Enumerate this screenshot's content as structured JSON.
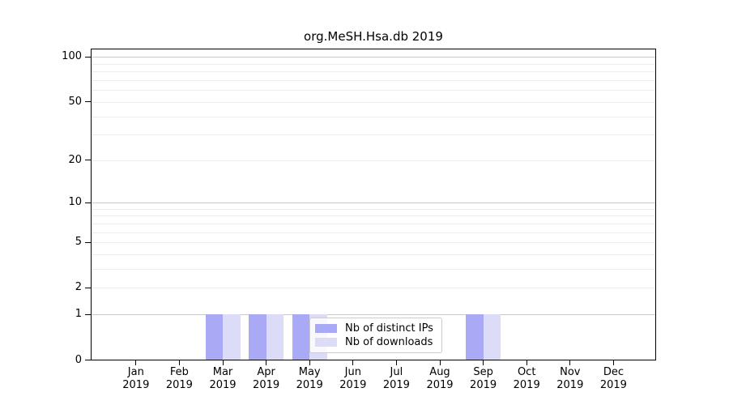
{
  "figure": {
    "background_color": "#ffffff",
    "axis_color": "#000000",
    "text_color": "#000000"
  },
  "chart_data": {
    "type": "bar",
    "title": "org.MeSH.Hsa.db 2019",
    "xlabel": "",
    "ylabel": "",
    "year": "2019",
    "categories": [
      "Jan",
      "Feb",
      "Mar",
      "Apr",
      "May",
      "Jun",
      "Jul",
      "Aug",
      "Sep",
      "Oct",
      "Nov",
      "Dec"
    ],
    "series": [
      {
        "name": "Nb of distinct IPs",
        "color": "#a9a9f5",
        "values": [
          0,
          0,
          1,
          1,
          1,
          0,
          0,
          0,
          1,
          0,
          0,
          0
        ]
      },
      {
        "name": "Nb of downloads",
        "color": "#dcdcf9",
        "values": [
          0,
          0,
          1,
          1,
          1,
          0,
          0,
          0,
          1,
          0,
          0,
          0
        ]
      }
    ],
    "yscale": "log1p",
    "ylim": [
      0,
      113
    ],
    "y_ticks": [
      0,
      1,
      2,
      5,
      10,
      20,
      50,
      100
    ],
    "y_gridlines_major": [
      1,
      10,
      100
    ],
    "y_gridlines_minor": [
      2,
      3,
      4,
      5,
      6,
      7,
      8,
      9,
      20,
      30,
      40,
      50,
      60,
      70,
      80,
      90
    ],
    "grid_minor_color": "#ededed",
    "grid_major_color": "#c9c9c9",
    "legend": {
      "position": "lower center-right inside plot",
      "border_color": "#cccccc",
      "background": "rgba(255,255,255,0.8)"
    }
  }
}
